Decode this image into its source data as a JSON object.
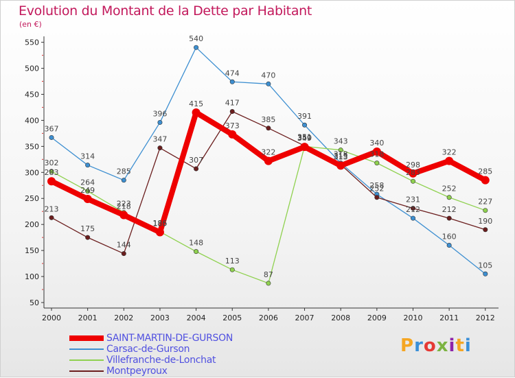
{
  "header": {
    "title": "Evolution du Montant de la Dette par Habitant",
    "unit": "(en €)"
  },
  "logo": {
    "text": "Proxiti",
    "colors": [
      "#f5a623",
      "#3a8fd8",
      "#e53935",
      "#7cb342",
      "#8e24aa",
      "#f5a623",
      "#3a8fd8"
    ]
  },
  "chart_data": {
    "type": "line",
    "title": "Evolution du Montant de la Dette par Habitant",
    "subtitle": "(en €)",
    "xlabel": "",
    "ylabel": "",
    "x": [
      "2000",
      "2001",
      "2002",
      "2003",
      "2004",
      "2005",
      "2006",
      "2007",
      "2008",
      "2009",
      "2010",
      "2011",
      "2012"
    ],
    "ylim": [
      50,
      550
    ],
    "yticks": [
      50,
      100,
      150,
      200,
      250,
      300,
      350,
      400,
      450,
      500,
      550
    ],
    "grid": false,
    "legend_position": "bottom-left",
    "series": [
      {
        "name": "SAINT-MARTIN-DE-GURSON",
        "color": "#ee0000",
        "values": [
          283,
          249,
          218,
          185,
          415,
          373,
          322,
          349,
          313,
          340,
          298,
          322,
          285
        ],
        "labels": [
          "283",
          "249",
          "218",
          "185",
          "415",
          "373",
          "322",
          "349",
          "313",
          "340",
          "298",
          "322",
          "285"
        ]
      },
      {
        "name": "Carsac-de-Gurson",
        "color": "#3d8fd1",
        "values": [
          367,
          314,
          285,
          396,
          540,
          474,
          470,
          391,
          318,
          258,
          212,
          160,
          105
        ],
        "labels": [
          "367",
          "314",
          "285",
          "396",
          "540",
          "474",
          "470",
          "391",
          "318",
          "258",
          "212",
          "160",
          "105"
        ]
      },
      {
        "name": "Villefranche-de-Lonchat",
        "color": "#8fd14f",
        "values": [
          302,
          264,
          223,
          186,
          148,
          113,
          87,
          350,
          343,
          318,
          283,
          252,
          227
        ],
        "labels": [
          "302",
          "264",
          "223",
          "186",
          "148",
          "113",
          "87",
          "350",
          "343",
          "318",
          "283",
          "252",
          "227"
        ]
      },
      {
        "name": "Montpeyroux",
        "color": "#6b1e1e",
        "values": [
          213,
          175,
          144,
          347,
          307,
          417,
          385,
          351,
          315,
          252,
          231,
          212,
          190
        ],
        "labels": [
          "213",
          "175",
          "144",
          "347",
          "307",
          "417",
          "385",
          "351",
          "315",
          "252",
          "231",
          "212",
          "190"
        ]
      }
    ]
  }
}
